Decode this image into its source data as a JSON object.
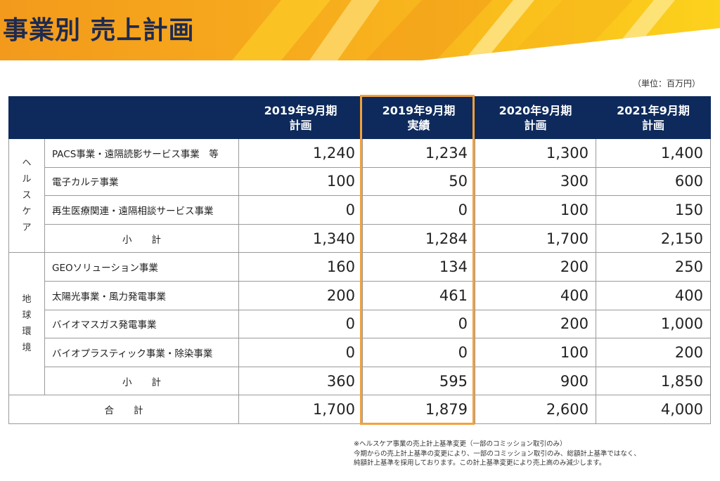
{
  "header": {
    "title": "事業別 売上計画"
  },
  "unit_note": "（単位：百万円）",
  "table": {
    "columns": [
      {
        "line1": "2019年9月期",
        "line2": "計画"
      },
      {
        "line1": "2019年9月期",
        "line2": "実績"
      },
      {
        "line1": "2020年9月期",
        "line2": "計画"
      },
      {
        "line1": "2021年9月期",
        "line2": "計画"
      }
    ],
    "groups": [
      {
        "label_chars": [
          "ヘ",
          "ル",
          "ス",
          "ケ",
          "ア"
        ],
        "rows": [
          {
            "name": "PACS事業・遠隔読影サービス事業　等",
            "values": [
              "1,240",
              "1,234",
              "1,300",
              "1,400"
            ]
          },
          {
            "name": "電子カルテ事業",
            "values": [
              "100",
              "50",
              "300",
              "600"
            ]
          },
          {
            "name": "再生医療関連・遠隔相談サービス事業",
            "values": [
              "0",
              "0",
              "100",
              "150"
            ]
          }
        ],
        "subtotal": {
          "label": "小計",
          "values": [
            "1,340",
            "1,284",
            "1,700",
            "2,150"
          ]
        }
      },
      {
        "label_chars": [
          "地",
          "球",
          "環",
          "境"
        ],
        "rows": [
          {
            "name": "GEOソリューション事業",
            "values": [
              "160",
              "134",
              "200",
              "250"
            ]
          },
          {
            "name": "太陽光事業・風力発電事業",
            "values": [
              "200",
              "461",
              "400",
              "400"
            ]
          },
          {
            "name": "バイオマスガス発電事業",
            "values": [
              "0",
              "0",
              "200",
              "1,000"
            ]
          },
          {
            "name": "バイオプラスティック事業・除染事業",
            "values": [
              "0",
              "0",
              "100",
              "200"
            ]
          }
        ],
        "subtotal": {
          "label": "小計",
          "values": [
            "360",
            "595",
            "900",
            "1,850"
          ]
        }
      }
    ],
    "total": {
      "label": "合計",
      "values": [
        "1,700",
        "1,879",
        "2,600",
        "4,000"
      ]
    }
  },
  "footnote": [
    "※ヘルスケア事業の売上計上基準変更（一部のコミッション取引のみ）",
    "今期からの売上計上基準の変更により、一部のコミッション取引のみ、総額計上基準ではなく、",
    "純額計上基準を採用しております。この計上基準変更により売上高のみ減少します。"
  ],
  "colors": {
    "header_navy": "#0e2a5c",
    "banner_yellow": "#f8b91a",
    "banner_orange": "#f0931e",
    "highlight_orange": "#f3a13a",
    "title_navy": "#1e2a4f"
  }
}
